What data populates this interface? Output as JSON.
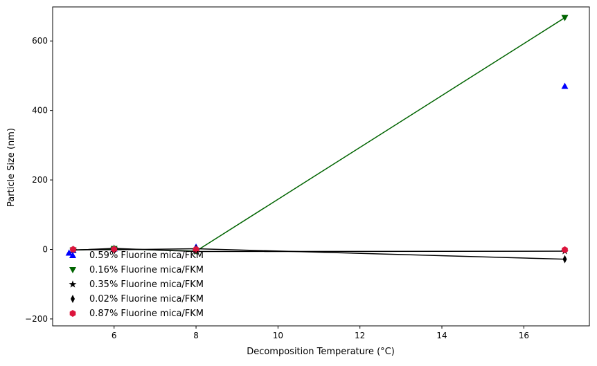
{
  "chart_data": {
    "type": "scatter",
    "title": "",
    "xlabel": "Decomposition Temperature (°C)",
    "ylabel": "Particle Size (nm)",
    "xlim": [
      4.5,
      17.6
    ],
    "ylim": [
      -220,
      698
    ],
    "xticks": [
      6,
      8,
      10,
      12,
      14,
      16
    ],
    "yticks": [
      -200,
      0,
      200,
      400,
      600
    ],
    "grid": false,
    "legend_position": "lower-left",
    "series": [
      {
        "name": "0.59% Fluorine mica/FKM",
        "marker": "triangle-up",
        "color": "#0000ff",
        "line": false,
        "x": [
          4.9,
          5.0,
          6.0,
          8.0,
          17.0
        ],
        "y": [
          -10,
          -2,
          2,
          7,
          470
        ]
      },
      {
        "name": "0.16% Fluorine mica/FKM",
        "marker": "triangle-down",
        "color": "#006400",
        "line": true,
        "x": [
          5.0,
          6.0,
          8.0,
          17.0
        ],
        "y": [
          -2,
          2,
          -5,
          667
        ]
      },
      {
        "name": "0.35% Fluorine mica/FKM",
        "marker": "star",
        "color": "#000000",
        "line": true,
        "x": [
          5.0,
          6.0,
          8.0,
          17.0
        ],
        "y": [
          -2,
          3,
          -6,
          -5
        ]
      },
      {
        "name": "0.02% Fluorine mica/FKM",
        "marker": "thin-diamond",
        "color": "#000000",
        "line": true,
        "x": [
          5.0,
          6.0,
          8.0,
          17.0
        ],
        "y": [
          -1,
          -1,
          2,
          -28
        ]
      },
      {
        "name": "0.87% Fluorine mica/FKM",
        "marker": "hexagon",
        "color": "#dc143c",
        "line": false,
        "x": [
          5.0,
          6.0,
          8.0,
          17.0
        ],
        "y": [
          0,
          0,
          0,
          -1
        ]
      }
    ]
  }
}
